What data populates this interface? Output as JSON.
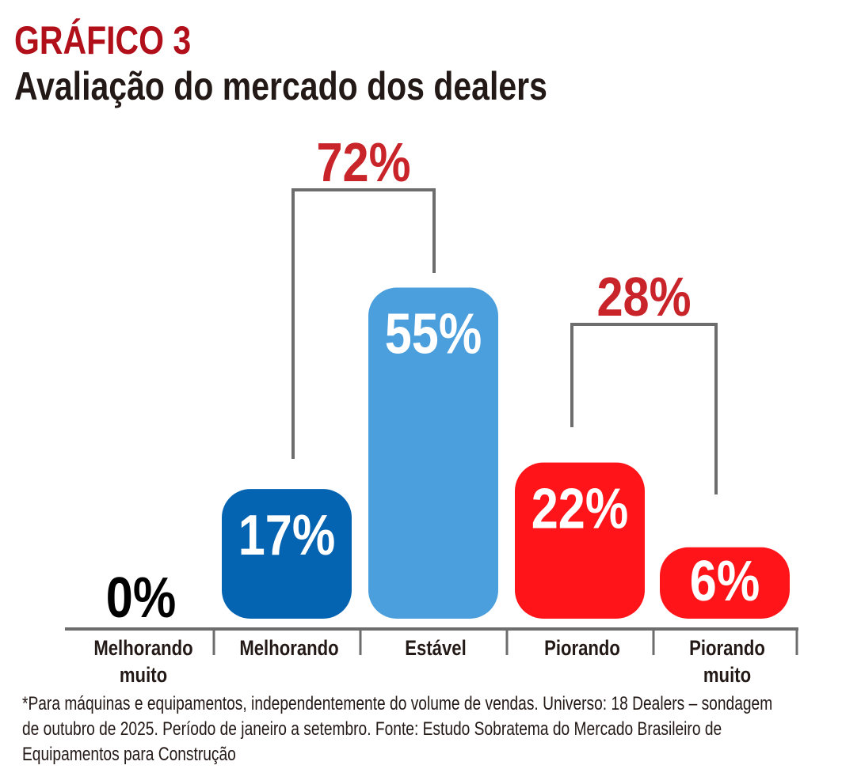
{
  "chart_data": {
    "type": "bar",
    "title": "GRÁFICO 3",
    "subtitle": "Avaliação do mercado dos dealers",
    "categories": [
      [
        "Melhorando",
        "muito"
      ],
      [
        "Melhorando"
      ],
      [
        "Estável"
      ],
      [
        "Piorando"
      ],
      [
        "Piorando",
        "muito"
      ]
    ],
    "values": [
      0,
      17,
      55,
      22,
      6
    ],
    "value_labels": [
      "0%",
      "17%",
      "55%",
      "22%",
      "6%"
    ],
    "colors": [
      "#000000",
      "#0564b1",
      "#4a9fdc",
      "#ff1419",
      "#ff1419"
    ],
    "groups": [
      {
        "label": "72%",
        "from": 1,
        "to": 2
      },
      {
        "label": "28%",
        "from": 3,
        "to": 4
      }
    ],
    "unit": "%",
    "ylim": [
      0,
      60
    ],
    "footnote": [
      "*Para máquinas e equipamentos, independentemente do volume de vendas. Universo: 18 Dealers – sondagem",
      "de outubro de 2025. Período de janeiro a setembro. Fonte: Estudo Sobratema do Mercado Brasileiro de",
      "Equipamentos para Construção"
    ]
  },
  "colors": {
    "title": "#b10f1a",
    "text": "#231916",
    "group_label": "#c8242a",
    "axis": "#6d6d6d"
  }
}
